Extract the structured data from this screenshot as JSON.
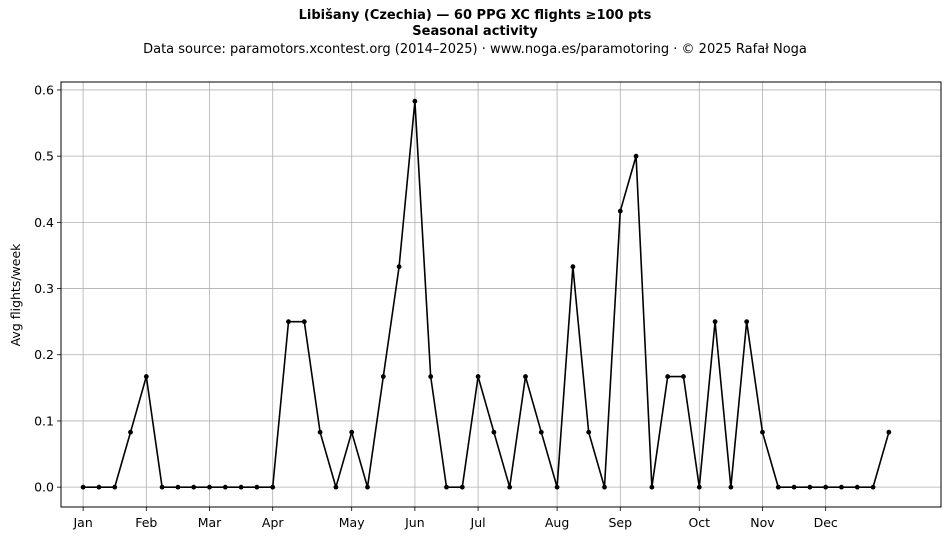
{
  "header": {
    "title_line1": "Libišany (Czechia)  —  60 PPG XC flights ≥100 pts",
    "title_line2": "Seasonal activity",
    "subtitle": "Data source: paramotors.xcontest.org (2014–2025)  ·  www.noga.es/paramotoring  ·  © 2025 Rafał Noga"
  },
  "chart_data": {
    "type": "line",
    "title": "Libišany (Czechia)  —  60 PPG XC flights ≥100 pts",
    "subtitle": "Seasonal activity",
    "xlabel": "",
    "ylabel": "Avg flights/week",
    "ylim": [
      -0.03,
      0.612
    ],
    "yticks": [
      0.0,
      0.1,
      0.2,
      0.3,
      0.4,
      0.5,
      0.6
    ],
    "ytick_labels": [
      "0.0",
      "0.1",
      "0.2",
      "0.3",
      "0.4",
      "0.5",
      "0.6"
    ],
    "xlim": [
      -1.4,
      54.3
    ],
    "xticks": [
      0,
      4,
      8,
      12,
      17,
      21,
      25,
      30,
      34,
      39,
      43,
      47
    ],
    "xtick_labels": [
      "Jan",
      "Feb",
      "Mar",
      "Apr",
      "May",
      "Jun",
      "Jul",
      "Aug",
      "Sep",
      "Oct",
      "Nov",
      "Dec"
    ],
    "grid": true,
    "line_color": "#000000",
    "x": [
      0,
      1,
      2,
      3,
      4,
      5,
      6,
      7,
      8,
      9,
      10,
      11,
      12,
      13,
      14,
      15,
      16,
      17,
      18,
      19,
      20,
      21,
      22,
      23,
      24,
      25,
      26,
      27,
      28,
      29,
      30,
      31,
      32,
      33,
      34,
      35,
      36,
      37,
      38,
      39,
      40,
      41,
      42,
      43,
      44,
      45,
      46,
      47,
      48,
      49,
      50,
      51
    ],
    "values": [
      0,
      0,
      0,
      0.083,
      0.167,
      0,
      0,
      0,
      0,
      0,
      0,
      0,
      0,
      0.25,
      0.25,
      0.083,
      0,
      0.083,
      0,
      0.167,
      0.333,
      0.583,
      0.167,
      0,
      0,
      0.167,
      0.083,
      0,
      0.167,
      0.083,
      0,
      0.333,
      0.083,
      0,
      0.417,
      0.5,
      0,
      0.167,
      0.167,
      0,
      0.25,
      0,
      0.25,
      0.083,
      0,
      0,
      0,
      0,
      0,
      0,
      0,
      0.083
    ]
  }
}
